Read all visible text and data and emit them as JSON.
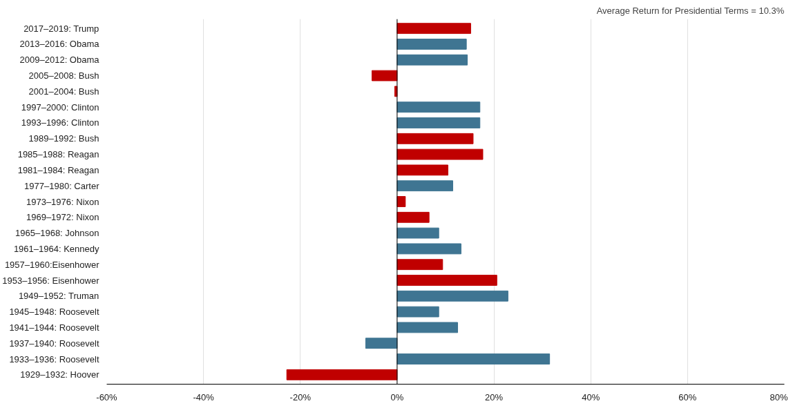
{
  "chart_data": {
    "type": "bar",
    "orientation": "horizontal",
    "categories": [
      "2017–2019: Trump",
      "2013–2016: Obama",
      "2009–2012: Obama",
      "2005–2008: Bush",
      "2001–2004: Bush",
      "1997–2000: Clinton",
      "1993–1996: Clinton",
      "1989–1992: Bush",
      "1985–1988: Reagan",
      "1981–1984: Reagan",
      "1977–1980: Carter",
      "1973–1976: Nixon",
      "1969–1972: Nixon",
      "1965–1968: Johnson",
      "1961–1964: Kennedy",
      "1957–1960:Eisenhower",
      "1953–1956: Eisenhower",
      "1949–1952: Truman",
      "1945–1948: Roosevelt",
      "1941–1944: Roosevelt",
      "1937–1940: Roosevelt",
      "1933–1936: Roosevelt",
      "1929–1932: Hoover"
    ],
    "values": [
      15.2,
      14.3,
      14.5,
      -5.2,
      -0.5,
      17.1,
      17.1,
      15.7,
      17.7,
      10.5,
      11.5,
      1.7,
      6.6,
      8.6,
      13.2,
      9.4,
      20.6,
      22.9,
      8.6,
      12.5,
      -6.5,
      31.5,
      -22.8
    ],
    "colors": [
      "#c00000",
      "#3f7592",
      "#3f7592",
      "#c00000",
      "#c00000",
      "#3f7592",
      "#3f7592",
      "#c00000",
      "#c00000",
      "#c00000",
      "#3f7592",
      "#c00000",
      "#c00000",
      "#3f7592",
      "#3f7592",
      "#c00000",
      "#c00000",
      "#3f7592",
      "#3f7592",
      "#3f7592",
      "#3f7592",
      "#3f7592",
      "#c00000"
    ],
    "xlim": [
      -60,
      80
    ],
    "xticks": [
      {
        "value": -60,
        "label": "-60%"
      },
      {
        "value": -40,
        "label": "-40%"
      },
      {
        "value": -20,
        "label": "-20%"
      },
      {
        "value": 0,
        "label": "0%"
      },
      {
        "value": 20,
        "label": "20%"
      },
      {
        "value": 40,
        "label": "40%"
      },
      {
        "value": 60,
        "label": "60%"
      },
      {
        "value": 80,
        "label": "80%"
      }
    ],
    "grid": "x",
    "ref_lines": [
      {
        "axis": "x",
        "value": 0,
        "label": null,
        "color": "#000000"
      }
    ],
    "annotations": [
      "Average Return for Presidential Terms = 10.3%"
    ]
  }
}
